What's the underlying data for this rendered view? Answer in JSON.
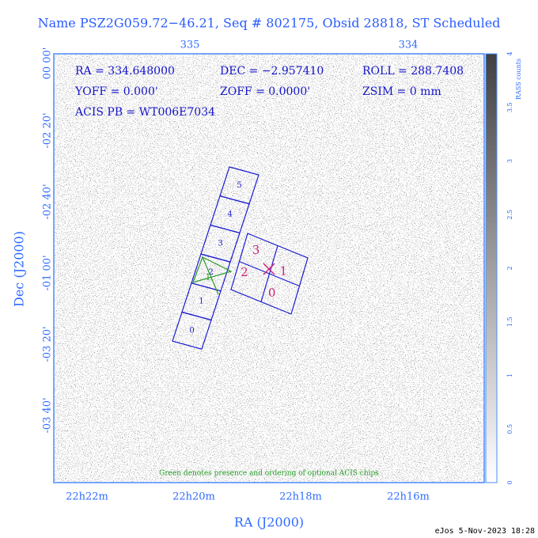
{
  "title": "Name PSZ2G059.72−46.21, Seq # 802175, Obsid 28818, ST Scheduled",
  "top_axis": [
    "335",
    "334"
  ],
  "left_axis": [
    "00 00'",
    "-02 20'",
    "-02 40'",
    "-01 00'",
    "-03 20'",
    "-03 40'"
  ],
  "bottom_axis": [
    "22h22m",
    "22h20m",
    "22h18m",
    "22h16m"
  ],
  "x_label": "RA (J2000)",
  "y_label": "Dec (J2000)",
  "info": [
    [
      "RA = 334.648000",
      "DEC = −2.957410",
      "ROLL = 288.7408"
    ],
    [
      "YOFF =   0.000'",
      "ZOFF =  0.0000'",
      "ZSIM = 0 mm"
    ],
    [
      "ACIS PB = WT006E7034"
    ]
  ],
  "acis_s": [
    "5",
    "4",
    "3",
    "2",
    "1",
    "0"
  ],
  "acis_i": [
    "3",
    "1",
    "2",
    "0"
  ],
  "optional_chip": "1",
  "note": "Green denotes presence and ordering of optional ACIS chips",
  "colorbar": {
    "label": "RASS counts",
    "ticks": [
      "0",
      "0.5",
      "1",
      "1.5",
      "2",
      "2.5",
      "3",
      "3.5",
      "4"
    ]
  },
  "footer": "eJos  5-Nov-2023 18:28"
}
